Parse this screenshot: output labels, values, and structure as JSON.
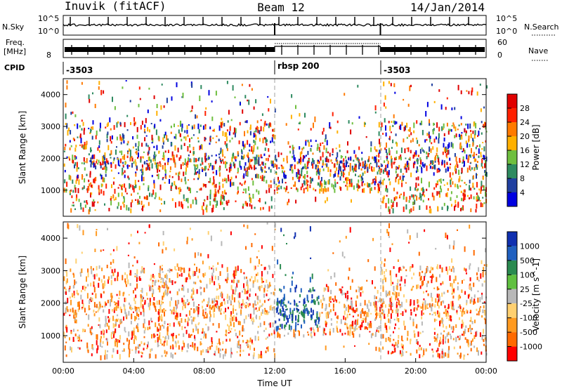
{
  "header": {
    "title": "Inuvik (fitACF)",
    "beam": "Beam 12",
    "date": "14/Jan/2014"
  },
  "top_panels": {
    "nsky_label": "N.Sky",
    "nsearch_label": "N.Search",
    "noise_ticks": [
      "10^5",
      "10^0"
    ],
    "freq_label_1": "Freq.",
    "freq_label_2": "[MHz]",
    "freq_ticks": [
      "8"
    ],
    "freq_top_tick": "",
    "nave_label": "Nave",
    "nave_ticks": [
      "60",
      "0"
    ],
    "cpid_label": "CPID",
    "cpid_segments": [
      {
        "label": "-3503",
        "start": 0,
        "end": 12
      },
      {
        "label": "rbsp 200",
        "start": 12,
        "end": 18
      },
      {
        "label": "-3503",
        "start": 18,
        "end": 24
      }
    ]
  },
  "chart_data": [
    {
      "type": "heatmap",
      "title": "",
      "ylabel": "Slant Range [km]",
      "xlabel": "",
      "xlim": [
        0,
        24
      ],
      "ylim": [
        180,
        4500
      ],
      "yticks": [
        "1000",
        "2000",
        "3000",
        "4000"
      ],
      "colorbar_label": "Power [dB]",
      "colorbar_ticks": [
        "4",
        "8",
        "12",
        "16",
        "20",
        "24",
        "28"
      ],
      "colorbar_range": [
        0,
        32
      ],
      "colorbar_colors": [
        "#0000e0",
        "#2040a0",
        "#2e8a60",
        "#6fbf3f",
        "#ffb000",
        "#ff7a00",
        "#ff2000",
        "#e00000"
      ]
    },
    {
      "type": "heatmap",
      "title": "",
      "ylabel": "Slant Range [km]",
      "xlabel": "Time UT",
      "xlim": [
        0,
        24
      ],
      "ylim": [
        180,
        4500
      ],
      "yticks": [
        "1000",
        "2000",
        "3000",
        "4000"
      ],
      "xticks": [
        "00:00",
        "04:00",
        "08:00",
        "12:00",
        "16:00",
        "20:00",
        "00:00"
      ],
      "colorbar_label": "Velocity [m s^-1]",
      "colorbar_ticks": [
        "1000",
        "500",
        "100",
        "25",
        "-25",
        "-100",
        "-500",
        "-1000"
      ],
      "colorbar_colors": [
        "#1030b0",
        "#2060c0",
        "#2a8a50",
        "#60c040",
        "#b8b8b8",
        "#ffd070",
        "#ff9a20",
        "#ff6a00",
        "#ff0000"
      ]
    }
  ],
  "colors": {
    "line": "#000000",
    "dashed_marker": "#a0a0a0"
  }
}
